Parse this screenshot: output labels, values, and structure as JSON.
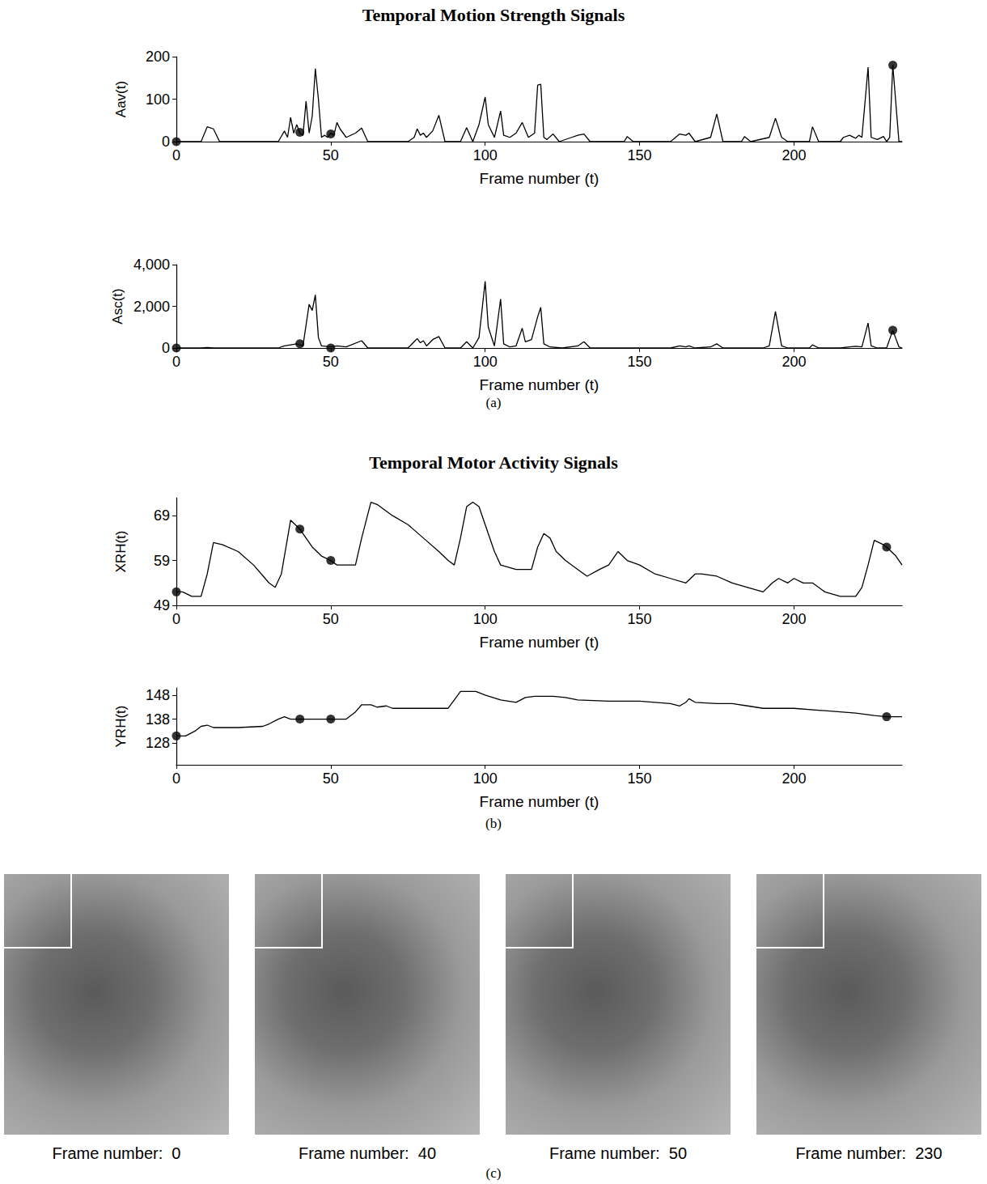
{
  "chart_data": [
    {
      "type": "line",
      "y_label": "Aav(t)",
      "x_label": "Frame number (t)",
      "xlim": [
        0,
        235
      ],
      "xticks": [
        0,
        50,
        100,
        150,
        200
      ],
      "ylim": [
        0,
        200
      ],
      "yticks": [
        0,
        100,
        200
      ],
      "grid": false,
      "series": [
        {
          "type": "line",
          "color": "#000000",
          "x": [
            0,
            8,
            10,
            12,
            14,
            33,
            35,
            36,
            37,
            38,
            39,
            40,
            41,
            42,
            43,
            44,
            45,
            46,
            47,
            48,
            49,
            50,
            51,
            52,
            53,
            55,
            58,
            60,
            62,
            75,
            77,
            78,
            79,
            80,
            81,
            83,
            85,
            87,
            92,
            94,
            96,
            98,
            100,
            101,
            103,
            105,
            106,
            108,
            110,
            112,
            114,
            116,
            117,
            118,
            119,
            120,
            122,
            124,
            128,
            130,
            132,
            134,
            145,
            146,
            148,
            160,
            163,
            165,
            166,
            168,
            173,
            175,
            177,
            183,
            184,
            186,
            192,
            194,
            196,
            198,
            205,
            206,
            208,
            215,
            216,
            218,
            220,
            221,
            222,
            224,
            225,
            227,
            229,
            230,
            231,
            232,
            234,
            235
          ],
          "values": [
            0,
            0,
            35,
            30,
            0,
            0,
            25,
            10,
            57,
            20,
            40,
            20,
            15,
            95,
            20,
            60,
            172,
            100,
            10,
            15,
            10,
            20,
            15,
            45,
            30,
            10,
            20,
            32,
            0,
            0,
            10,
            30,
            15,
            20,
            10,
            25,
            62,
            0,
            0,
            33,
            0,
            40,
            105,
            40,
            10,
            72,
            15,
            10,
            20,
            45,
            10,
            20,
            133,
            135,
            10,
            5,
            18,
            0,
            10,
            15,
            18,
            0,
            0,
            12,
            0,
            0,
            18,
            15,
            20,
            0,
            10,
            65,
            0,
            0,
            12,
            0,
            10,
            55,
            10,
            0,
            0,
            35,
            0,
            0,
            10,
            15,
            8,
            15,
            10,
            175,
            10,
            5,
            12,
            0,
            10,
            180,
            0,
            0
          ]
        },
        {
          "type": "scatter",
          "marker": "circle",
          "color": "#000000",
          "x": [
            0,
            40,
            50,
            232
          ],
          "values": [
            0,
            22,
            18,
            180
          ]
        }
      ]
    },
    {
      "type": "line",
      "y_label": "Asc(t)",
      "x_label": "Frame number (t)",
      "xlim": [
        0,
        235
      ],
      "xticks": [
        0,
        50,
        100,
        150,
        200
      ],
      "ylim": [
        0,
        4000
      ],
      "yticks": [
        0,
        2000,
        4000
      ],
      "grid": false,
      "series": [
        {
          "type": "line",
          "color": "#000000",
          "x": [
            0,
            8,
            10,
            12,
            33,
            35,
            37,
            39,
            41,
            43,
            44,
            45,
            46,
            47,
            50,
            52,
            55,
            60,
            62,
            75,
            77,
            78,
            79,
            80,
            81,
            83,
            85,
            87,
            92,
            94,
            96,
            98,
            100,
            101,
            103,
            105,
            106,
            108,
            110,
            112,
            113,
            115,
            117,
            118,
            119,
            121,
            125,
            130,
            132,
            134,
            160,
            163,
            165,
            166,
            168,
            173,
            175,
            177,
            190,
            192,
            194,
            196,
            198,
            205,
            206,
            208,
            215,
            218,
            220,
            222,
            224,
            225,
            227,
            230,
            232,
            234,
            235
          ],
          "values": [
            0,
            0,
            20,
            0,
            0,
            100,
            150,
            200,
            100,
            2100,
            1800,
            2550,
            500,
            100,
            50,
            100,
            50,
            350,
            0,
            0,
            300,
            450,
            250,
            350,
            100,
            400,
            550,
            0,
            0,
            300,
            0,
            500,
            3200,
            1000,
            100,
            2350,
            200,
            50,
            100,
            950,
            300,
            400,
            1500,
            1950,
            200,
            50,
            0,
            100,
            300,
            0,
            0,
            100,
            50,
            100,
            0,
            50,
            200,
            0,
            0,
            100,
            1750,
            100,
            0,
            0,
            150,
            0,
            0,
            50,
            80,
            50,
            1200,
            100,
            0,
            0,
            850,
            50,
            0
          ]
        },
        {
          "type": "scatter",
          "marker": "circle",
          "color": "#000000",
          "x": [
            0,
            40,
            50,
            232
          ],
          "values": [
            0,
            200,
            0,
            850
          ]
        }
      ]
    },
    {
      "type": "line",
      "y_label": "XRH(t)",
      "x_label": "Frame number (t)",
      "xlim": [
        0,
        235
      ],
      "xticks": [
        0,
        50,
        100,
        150,
        200
      ],
      "ylim": [
        49,
        73
      ],
      "yticks": [
        49,
        59,
        69
      ],
      "grid": false,
      "series": [
        {
          "type": "line",
          "color": "#000000",
          "x": [
            0,
            2,
            5,
            8,
            10,
            12,
            15,
            20,
            25,
            30,
            32,
            34,
            36,
            37,
            40,
            42,
            44,
            47,
            50,
            52,
            55,
            58,
            60,
            63,
            65,
            70,
            75,
            80,
            85,
            88,
            90,
            92,
            94,
            96,
            98,
            100,
            103,
            105,
            110,
            115,
            117,
            119,
            121,
            123,
            126,
            130,
            133,
            137,
            140,
            143,
            146,
            150,
            155,
            160,
            165,
            168,
            170,
            175,
            180,
            185,
            190,
            193,
            195,
            198,
            200,
            203,
            206,
            210,
            215,
            220,
            222,
            224,
            226,
            229,
            230,
            233,
            235
          ],
          "values": [
            52,
            52,
            51,
            51,
            56,
            63,
            62.5,
            61,
            58,
            54,
            53,
            56,
            64,
            68,
            66,
            64,
            62,
            60,
            59,
            58,
            58,
            58,
            64,
            72,
            71.5,
            69,
            67,
            64,
            61,
            59,
            58,
            64,
            71,
            72,
            71,
            67,
            61,
            58,
            57,
            57,
            62,
            65,
            64,
            61,
            59,
            57,
            55.5,
            57,
            58,
            61,
            59,
            58,
            56,
            55,
            54,
            56,
            56,
            55.5,
            54,
            53,
            52,
            54,
            55,
            54,
            55,
            54,
            54,
            52,
            51,
            51,
            53,
            58,
            63.5,
            62.5,
            62,
            60,
            58
          ]
        },
        {
          "type": "scatter",
          "marker": "circle",
          "color": "#000000",
          "x": [
            0,
            40,
            50,
            230
          ],
          "values": [
            52,
            66,
            59,
            62
          ]
        }
      ]
    },
    {
      "type": "line",
      "y_label": "YRH(t)",
      "x_label": "Frame number (t)",
      "xlim": [
        0,
        235
      ],
      "xticks": [
        0,
        50,
        100,
        150,
        200
      ],
      "ylim": [
        119,
        151
      ],
      "yticks": [
        128,
        138,
        148
      ],
      "grid": false,
      "series": [
        {
          "type": "line",
          "color": "#000000",
          "x": [
            0,
            3,
            6,
            8,
            10,
            12,
            20,
            28,
            30,
            33,
            35,
            37,
            40,
            45,
            50,
            55,
            58,
            60,
            63,
            65,
            68,
            70,
            80,
            88,
            90,
            92,
            97,
            100,
            105,
            110,
            113,
            116,
            122,
            126,
            130,
            140,
            150,
            160,
            163,
            165,
            166,
            168,
            175,
            180,
            185,
            190,
            200,
            210,
            220,
            226,
            230,
            235
          ],
          "values": [
            131,
            131,
            133,
            135,
            135.5,
            134.5,
            134.5,
            135,
            136,
            138,
            139,
            138,
            138,
            138,
            138,
            138,
            141,
            144,
            144,
            143,
            143.5,
            142.5,
            142.5,
            142.5,
            146,
            149.5,
            149.5,
            148,
            146,
            145,
            147,
            147.5,
            147.5,
            147,
            146,
            145.5,
            145.5,
            144.5,
            143.5,
            145,
            146.5,
            145,
            144.5,
            144.5,
            143.5,
            142.5,
            142.5,
            141.5,
            140.5,
            139.5,
            139,
            139
          ]
        },
        {
          "type": "scatter",
          "marker": "circle",
          "color": "#000000",
          "x": [
            0,
            40,
            50,
            230
          ],
          "values": [
            131,
            138,
            138,
            139
          ]
        }
      ]
    }
  ],
  "figure": {
    "sections": [
      {
        "title": "Temporal Motion Strength Signals",
        "label": "(a)"
      },
      {
        "title": "Temporal Motor Activity Signals",
        "label": "(b)"
      },
      {
        "label": "(c)",
        "images": [
          {
            "caption": "Frame number:  0"
          },
          {
            "caption": "Frame number:  40"
          },
          {
            "caption": "Frame number:  50"
          },
          {
            "caption": "Frame number:  230"
          }
        ]
      }
    ]
  }
}
